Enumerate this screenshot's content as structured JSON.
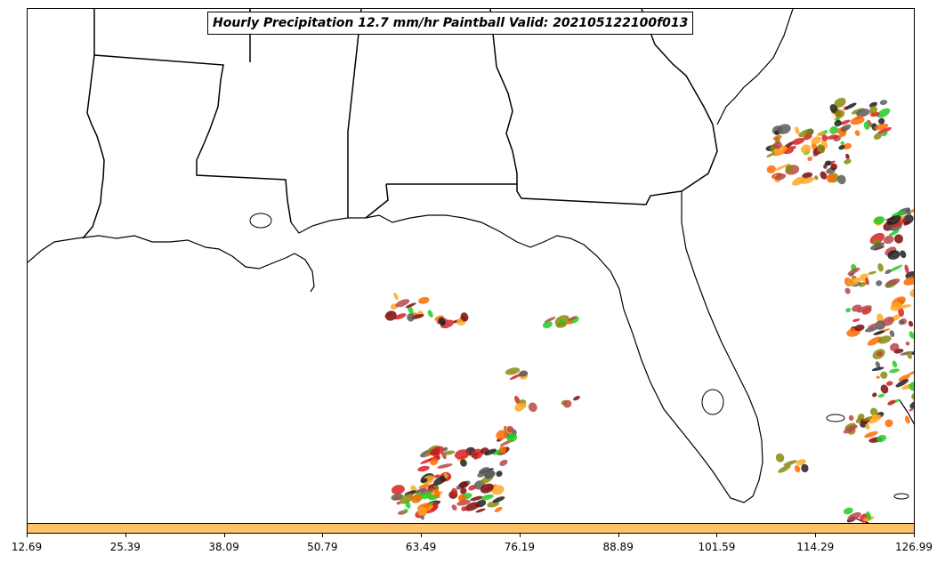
{
  "title": "Hourly Precipitation 12.7 mm/hr Paintball Valid: 202105122100f013",
  "colorbar": {
    "color": "#ffc266",
    "ticks": [
      "12.69",
      "25.39",
      "38.09",
      "50.79",
      "63.49",
      "76.19",
      "88.89",
      "101.59",
      "114.29",
      "126.99"
    ]
  },
  "map": {
    "region": "US Gulf Coast and Florida",
    "features": [
      "coastline",
      "state-borders"
    ],
    "member_colors": [
      "#1f1f1f",
      "#7a0c0c",
      "#d62222",
      "#ff6a00",
      "#ffa726",
      "#8a8a10",
      "#22cc22",
      "#5a5a5a",
      "#b84646"
    ]
  }
}
